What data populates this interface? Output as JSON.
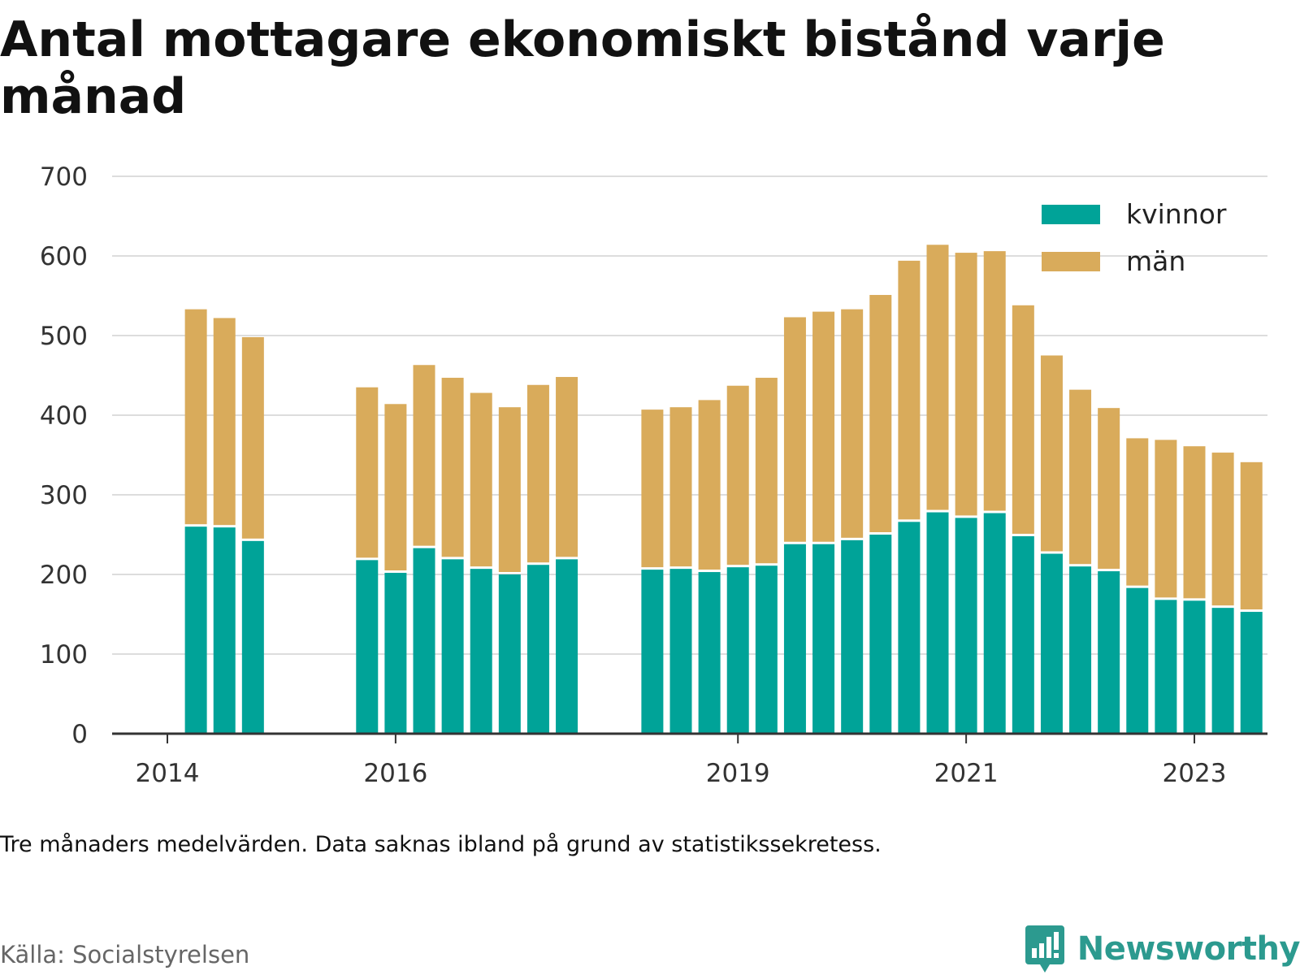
{
  "title": "Antal mottagare ekonomiskt bistånd varje månad",
  "note": "Tre månaders medelvärden. Data saknas ibland på grund av statistikssekretess.",
  "source": "Källa: Socialstyrelsen",
  "brand": {
    "name": "Newsworthy",
    "icon": "bar-chart-speech-bubble-icon"
  },
  "colors": {
    "kvinnor": "#00a398",
    "man": "#d9ab5b",
    "grid": "#dddddd",
    "axis": "#333333"
  },
  "chart_data": {
    "type": "bar",
    "stacked": true,
    "y_ticks": [
      0,
      100,
      200,
      300,
      400,
      500,
      600,
      700
    ],
    "ylim": [
      0,
      700
    ],
    "grid": true,
    "legend_position": "top-right",
    "x_ticks": [
      {
        "label": "2014",
        "date": "2014-01"
      },
      {
        "label": "2016",
        "date": "2016-01"
      },
      {
        "label": "2019",
        "date": "2019-01"
      },
      {
        "label": "2021",
        "date": "2021-01"
      },
      {
        "label": "2023",
        "date": "2023-01"
      }
    ],
    "series": [
      {
        "name": "kvinnor",
        "color": "#00a398"
      },
      {
        "name": "män",
        "color": "#d9ab5b"
      }
    ],
    "bars": [
      {
        "date": "2014-04",
        "kvinnor": 260,
        "man": 273
      },
      {
        "date": "2014-07",
        "kvinnor": 259,
        "man": 263
      },
      {
        "date": "2014-10",
        "kvinnor": 242,
        "man": 256
      },
      {
        "date": "2015-10",
        "kvinnor": 218,
        "man": 217
      },
      {
        "date": "2016-01",
        "kvinnor": 202,
        "man": 212
      },
      {
        "date": "2016-04",
        "kvinnor": 233,
        "man": 230
      },
      {
        "date": "2016-07",
        "kvinnor": 219,
        "man": 228
      },
      {
        "date": "2016-10",
        "kvinnor": 207,
        "man": 221
      },
      {
        "date": "2017-01",
        "kvinnor": 200,
        "man": 210
      },
      {
        "date": "2017-04",
        "kvinnor": 212,
        "man": 226
      },
      {
        "date": "2017-07",
        "kvinnor": 219,
        "man": 229
      },
      {
        "date": "2018-04",
        "kvinnor": 206,
        "man": 201
      },
      {
        "date": "2018-07",
        "kvinnor": 207,
        "man": 203
      },
      {
        "date": "2018-10",
        "kvinnor": 203,
        "man": 216
      },
      {
        "date": "2019-01",
        "kvinnor": 209,
        "man": 228
      },
      {
        "date": "2019-04",
        "kvinnor": 211,
        "man": 236
      },
      {
        "date": "2019-07",
        "kvinnor": 238,
        "man": 285
      },
      {
        "date": "2019-10",
        "kvinnor": 238,
        "man": 292
      },
      {
        "date": "2020-01",
        "kvinnor": 243,
        "man": 290
      },
      {
        "date": "2020-04",
        "kvinnor": 250,
        "man": 301
      },
      {
        "date": "2020-07",
        "kvinnor": 266,
        "man": 328
      },
      {
        "date": "2020-10",
        "kvinnor": 278,
        "man": 336
      },
      {
        "date": "2021-01",
        "kvinnor": 271,
        "man": 333
      },
      {
        "date": "2021-04",
        "kvinnor": 277,
        "man": 329
      },
      {
        "date": "2021-07",
        "kvinnor": 248,
        "man": 290
      },
      {
        "date": "2021-10",
        "kvinnor": 226,
        "man": 249
      },
      {
        "date": "2022-01",
        "kvinnor": 210,
        "man": 222
      },
      {
        "date": "2022-04",
        "kvinnor": 204,
        "man": 205
      },
      {
        "date": "2022-07",
        "kvinnor": 183,
        "man": 188
      },
      {
        "date": "2022-10",
        "kvinnor": 168,
        "man": 201
      },
      {
        "date": "2023-01",
        "kvinnor": 167,
        "man": 194
      },
      {
        "date": "2023-04",
        "kvinnor": 158,
        "man": 195
      },
      {
        "date": "2023-07",
        "kvinnor": 153,
        "man": 188
      }
    ]
  }
}
